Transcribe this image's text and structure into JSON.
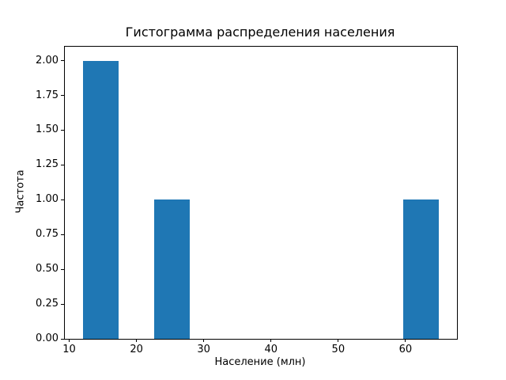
{
  "figure": {
    "background_color": "#ffffff",
    "bar_color": "#1f77b4",
    "axis_color": "#000000",
    "text_color": "#000000"
  },
  "chart_data": {
    "type": "bar",
    "subtype": "histogram",
    "title": "Гистограмма распределения населения",
    "xlabel": "Население (млн)",
    "ylabel": "Частота",
    "xlim": [
      9.35,
      67.65
    ],
    "ylim": [
      0,
      2.1
    ],
    "grid": false,
    "legend": false,
    "x_ticks": {
      "values": [
        10,
        20,
        30,
        40,
        50,
        60
      ],
      "labels": [
        "10",
        "20",
        "30",
        "40",
        "50",
        "60"
      ]
    },
    "y_ticks": {
      "values": [
        0,
        0.25,
        0.5,
        0.75,
        1.0,
        1.25,
        1.5,
        1.75,
        2.0
      ],
      "labels": [
        "0.00",
        "0.25",
        "0.50",
        "0.75",
        "1.00",
        "1.25",
        "1.50",
        "1.75",
        "2.00"
      ]
    },
    "bins": [
      {
        "x0": 12.0,
        "x1": 17.3,
        "count": 2
      },
      {
        "x0": 22.6,
        "x1": 27.9,
        "count": 1
      },
      {
        "x0": 59.7,
        "x1": 65.0,
        "count": 1
      }
    ]
  }
}
